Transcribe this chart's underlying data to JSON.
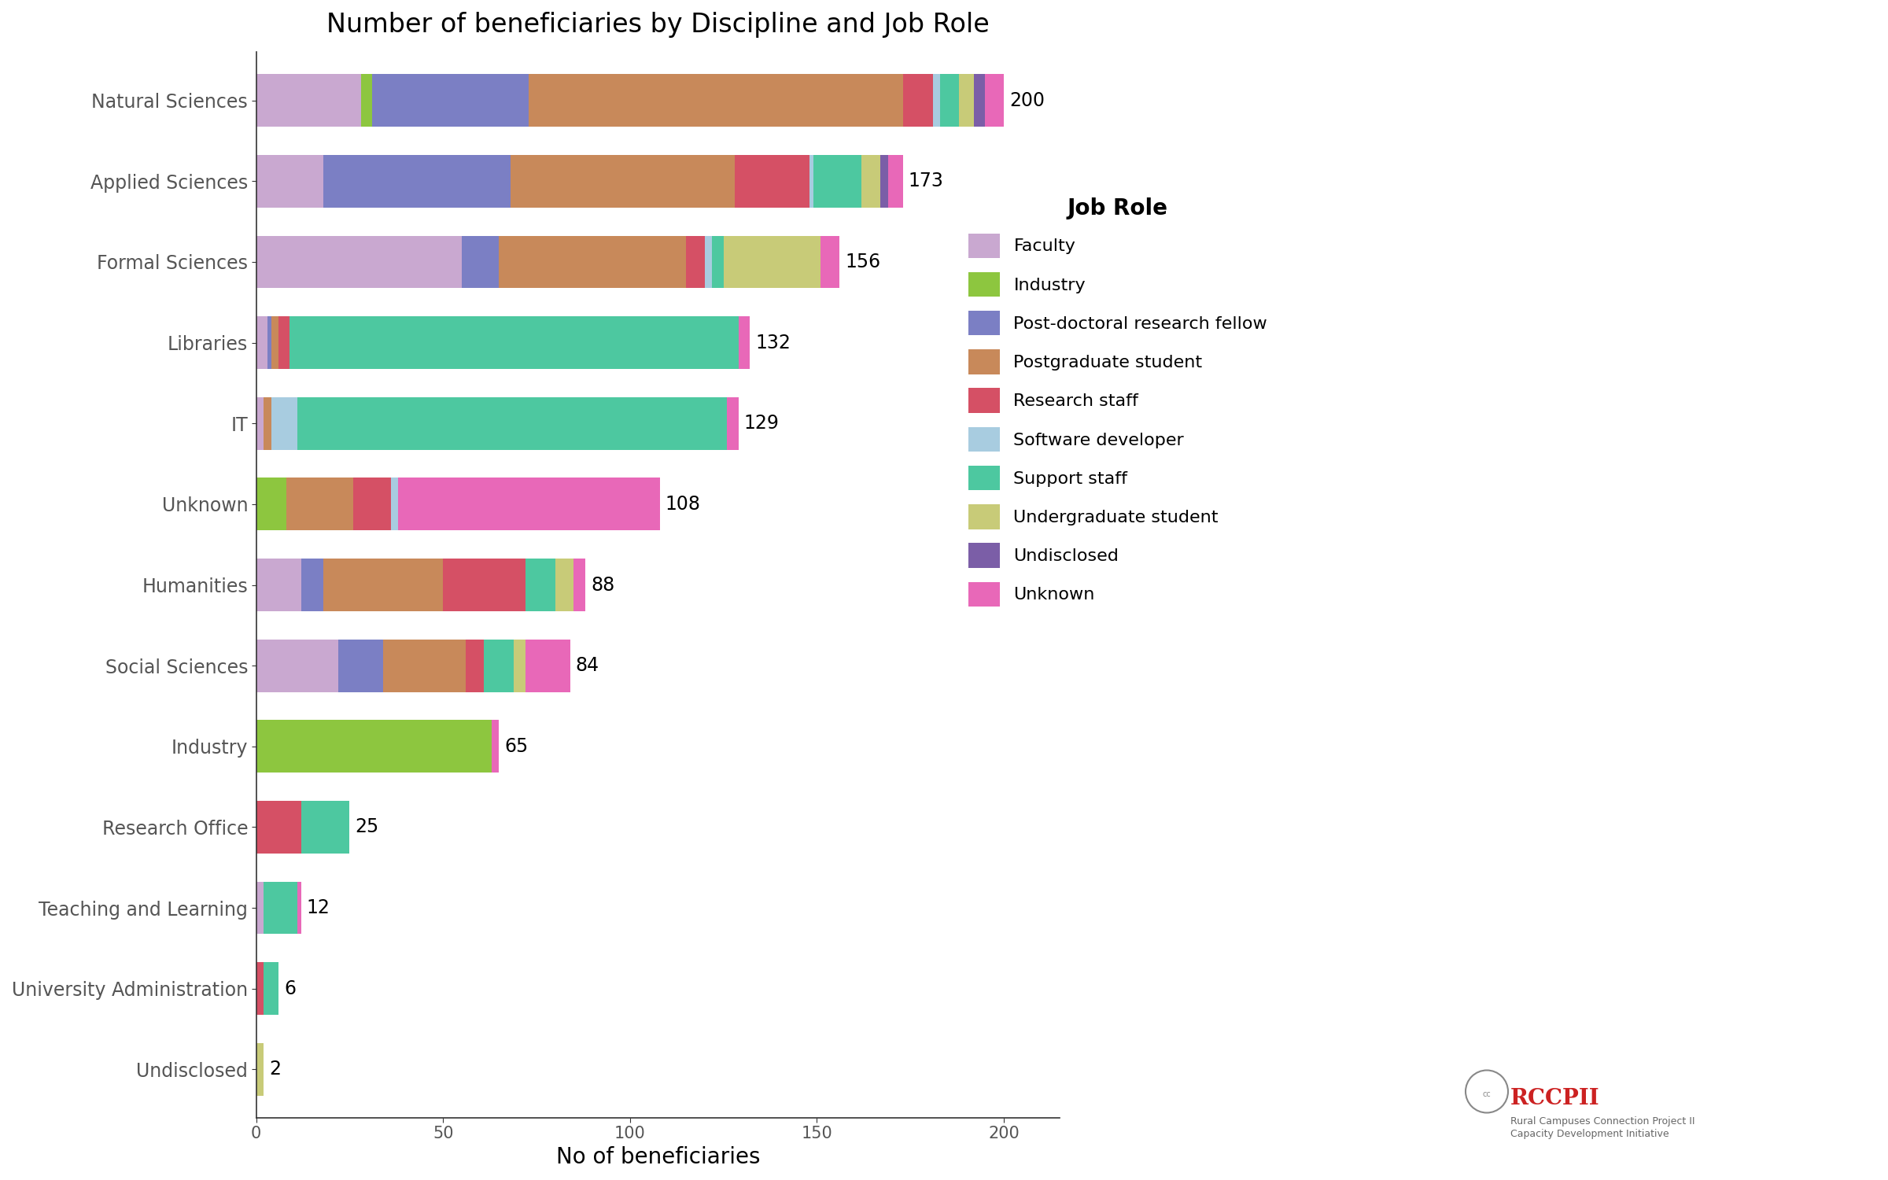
{
  "title": "Number of beneficiaries by Discipline and Job Role",
  "xlabel": "No of beneficiaries",
  "ylabel": "",
  "disciplines": [
    "Natural Sciences",
    "Applied Sciences",
    "Formal Sciences",
    "Libraries",
    "IT",
    "Unknown",
    "Humanities",
    "Social Sciences",
    "Industry",
    "Research Office",
    "Teaching and Learning",
    "University Administration",
    "Undisclosed"
  ],
  "totals": [
    200,
    173,
    156,
    132,
    129,
    108,
    88,
    84,
    65,
    25,
    12,
    6,
    2
  ],
  "job_roles": [
    "Faculty",
    "Industry",
    "Post-doctoral research fellow",
    "Postgraduate student",
    "Research staff",
    "Software developer",
    "Support staff",
    "Undergraduate student",
    "Undisclosed",
    "Unknown"
  ],
  "colors": {
    "Faculty": "#C9A8D0",
    "Industry": "#8DC63F",
    "Post-doctoral research fellow": "#7B7FC4",
    "Postgraduate student": "#C8895A",
    "Research staff": "#D55065",
    "Software developer": "#A8CCE0",
    "Support staff": "#4DC8A0",
    "Undergraduate student": "#C8CB78",
    "Undisclosed": "#7B5EA7",
    "Unknown": "#E868B8"
  },
  "data": {
    "Natural Sciences": {
      "Faculty": 28,
      "Industry": 3,
      "Post-doctoral research fellow": 42,
      "Postgraduate student": 100,
      "Research staff": 8,
      "Software developer": 2,
      "Support staff": 5,
      "Undergraduate student": 4,
      "Undisclosed": 3,
      "Unknown": 5
    },
    "Applied Sciences": {
      "Faculty": 18,
      "Industry": 0,
      "Post-doctoral research fellow": 50,
      "Postgraduate student": 60,
      "Research staff": 20,
      "Software developer": 1,
      "Support staff": 13,
      "Undergraduate student": 5,
      "Undisclosed": 2,
      "Unknown": 4
    },
    "Formal Sciences": {
      "Faculty": 55,
      "Industry": 0,
      "Post-doctoral research fellow": 10,
      "Postgraduate student": 50,
      "Research staff": 5,
      "Software developer": 2,
      "Support staff": 3,
      "Undergraduate student": 26,
      "Undisclosed": 0,
      "Unknown": 5
    },
    "Libraries": {
      "Faculty": 3,
      "Industry": 0,
      "Post-doctoral research fellow": 1,
      "Postgraduate student": 2,
      "Research staff": 3,
      "Software developer": 0,
      "Support staff": 120,
      "Undergraduate student": 0,
      "Undisclosed": 0,
      "Unknown": 3
    },
    "IT": {
      "Faculty": 2,
      "Industry": 0,
      "Post-doctoral research fellow": 0,
      "Postgraduate student": 2,
      "Research staff": 0,
      "Software developer": 7,
      "Support staff": 115,
      "Undergraduate student": 0,
      "Undisclosed": 0,
      "Unknown": 3
    },
    "Unknown": {
      "Faculty": 0,
      "Industry": 8,
      "Post-doctoral research fellow": 0,
      "Postgraduate student": 18,
      "Research staff": 10,
      "Software developer": 2,
      "Support staff": 0,
      "Undergraduate student": 0,
      "Undisclosed": 0,
      "Unknown": 70
    },
    "Humanities": {
      "Faculty": 12,
      "Industry": 0,
      "Post-doctoral research fellow": 6,
      "Postgraduate student": 32,
      "Research staff": 22,
      "Software developer": 0,
      "Support staff": 8,
      "Undergraduate student": 5,
      "Undisclosed": 0,
      "Unknown": 3
    },
    "Social Sciences": {
      "Faculty": 22,
      "Industry": 0,
      "Post-doctoral research fellow": 12,
      "Postgraduate student": 22,
      "Research staff": 5,
      "Software developer": 0,
      "Support staff": 8,
      "Undergraduate student": 3,
      "Undisclosed": 0,
      "Unknown": 12
    },
    "Industry": {
      "Faculty": 0,
      "Industry": 63,
      "Post-doctoral research fellow": 0,
      "Postgraduate student": 0,
      "Research staff": 0,
      "Software developer": 0,
      "Support staff": 0,
      "Undergraduate student": 0,
      "Undisclosed": 0,
      "Unknown": 2
    },
    "Research Office": {
      "Faculty": 0,
      "Industry": 0,
      "Post-doctoral research fellow": 0,
      "Postgraduate student": 0,
      "Research staff": 12,
      "Software developer": 0,
      "Support staff": 13,
      "Undergraduate student": 0,
      "Undisclosed": 0,
      "Unknown": 0
    },
    "Teaching and Learning": {
      "Faculty": 2,
      "Industry": 0,
      "Post-doctoral research fellow": 0,
      "Postgraduate student": 0,
      "Research staff": 0,
      "Software developer": 0,
      "Support staff": 9,
      "Undergraduate student": 0,
      "Undisclosed": 0,
      "Unknown": 1
    },
    "University Administration": {
      "Faculty": 0,
      "Industry": 0,
      "Post-doctoral research fellow": 0,
      "Postgraduate student": 0,
      "Research staff": 2,
      "Software developer": 0,
      "Support staff": 4,
      "Undergraduate student": 0,
      "Undisclosed": 0,
      "Unknown": 0
    },
    "Undisclosed": {
      "Faculty": 0,
      "Industry": 0,
      "Post-doctoral research fellow": 0,
      "Postgraduate student": 0,
      "Research staff": 0,
      "Software developer": 0,
      "Support staff": 0,
      "Undergraduate student": 2,
      "Undisclosed": 0,
      "Unknown": 0
    }
  },
  "background_color": "#FFFFFF",
  "figsize": [
    24.0,
    15.0
  ],
  "dpi": 100
}
